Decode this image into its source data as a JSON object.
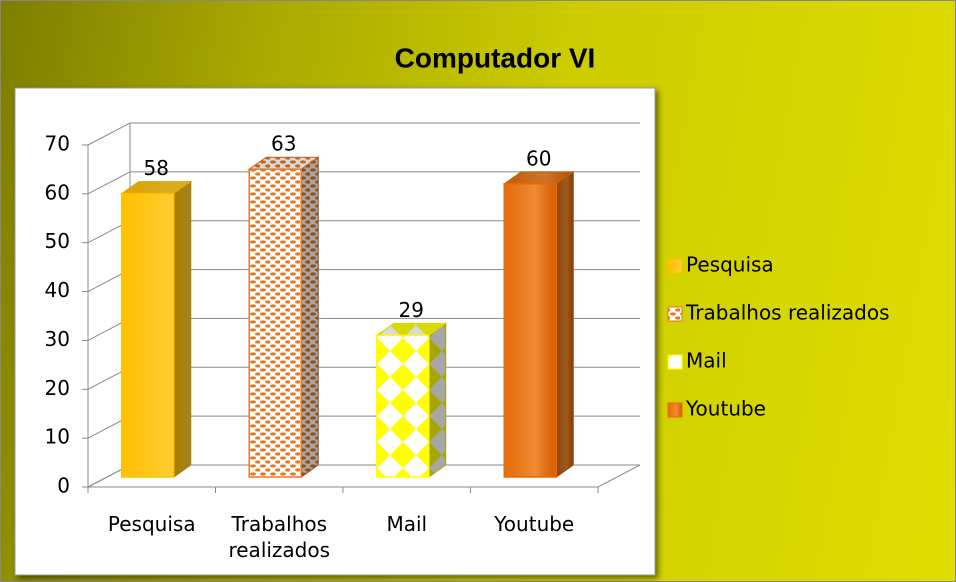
{
  "chart_data": {
    "type": "bar",
    "title": "Computador VI",
    "categories": [
      "Pesquisa",
      "Trabalhos realizados",
      "Mail",
      "Youtube"
    ],
    "values": [
      58,
      63,
      29,
      60
    ],
    "colors": [
      "#ffc000",
      "#e87722",
      "#ffff00",
      "#e46c0a"
    ],
    "ylim": [
      0,
      70
    ],
    "yticks": [
      0,
      10,
      20,
      30,
      40,
      50,
      60,
      70
    ],
    "grid": true,
    "legend": "right"
  }
}
